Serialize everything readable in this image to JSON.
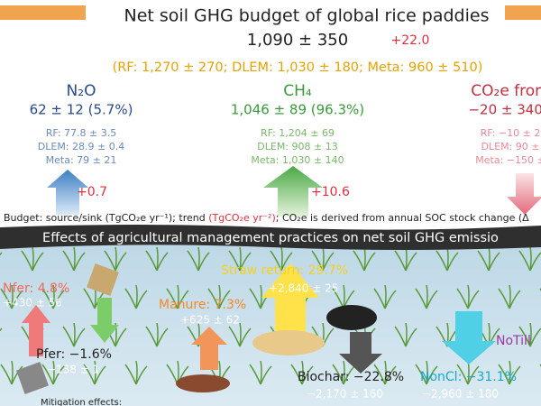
{
  "header": {
    "title": "Net soil GHG budget of global rice paddies",
    "total": "1,090 ± 350",
    "trend": "+22.0",
    "models": "(RF: 1,270 ± 270; DLEM: 1,030 ± 180; Meta: 960 ± 510)"
  },
  "components": [
    {
      "name": "N₂O",
      "value": "62 ± 12 (5.7%)",
      "rf": "RF: 77.8 ± 3.5",
      "dlem": "DLEM: 28.9 ± 0.4",
      "meta": "Meta: 79 ± 21",
      "trend": "+0.7"
    },
    {
      "name": "CH₄",
      "value": "1,046 ± 89 (96.3%)",
      "rf": "RF: 1,204 ± 69",
      "dlem": "DLEM: 908 ± 13",
      "meta": "Meta: 1,030 ± 140",
      "trend": "+10.6"
    },
    {
      "name": "CO₂e from",
      "value": "−20 ± 340 (",
      "rf": "RF: −10 ± 2",
      "dlem": "DLEM: 90 ±",
      "meta": "Meta: −150 ±",
      "trend": "−"
    }
  ],
  "budget_note": {
    "before": "Budget:  source/sink (TgCO₂e yr⁻¹); trend",
    "trend_unit": "(TgCO₂e yr⁻²)",
    "after": "; CO₂e is derived from annual SOC stock change (Δ"
  },
  "banner": "Effects of agricultural management practices on net soil GHG emissio",
  "practices": [
    {
      "label": "Nfer: 4.8%",
      "value": "+430 ± 56"
    },
    {
      "label": "Pfer: −1.6%",
      "value": "−138 ± 1"
    },
    {
      "label": "Manure: 7.3%",
      "value": "+625 ± 62"
    },
    {
      "label": "Straw return: 29.7%",
      "value": "+2,840 ± 25"
    },
    {
      "label": "Biochar: −22.8%",
      "value": "−2,170 ± 160"
    },
    {
      "label": "NonCl: −31.1%",
      "value": "−2,960 ± 180"
    },
    {
      "label": "NoTill",
      "value": ""
    }
  ],
  "footer": "Mitigation effects:"
}
